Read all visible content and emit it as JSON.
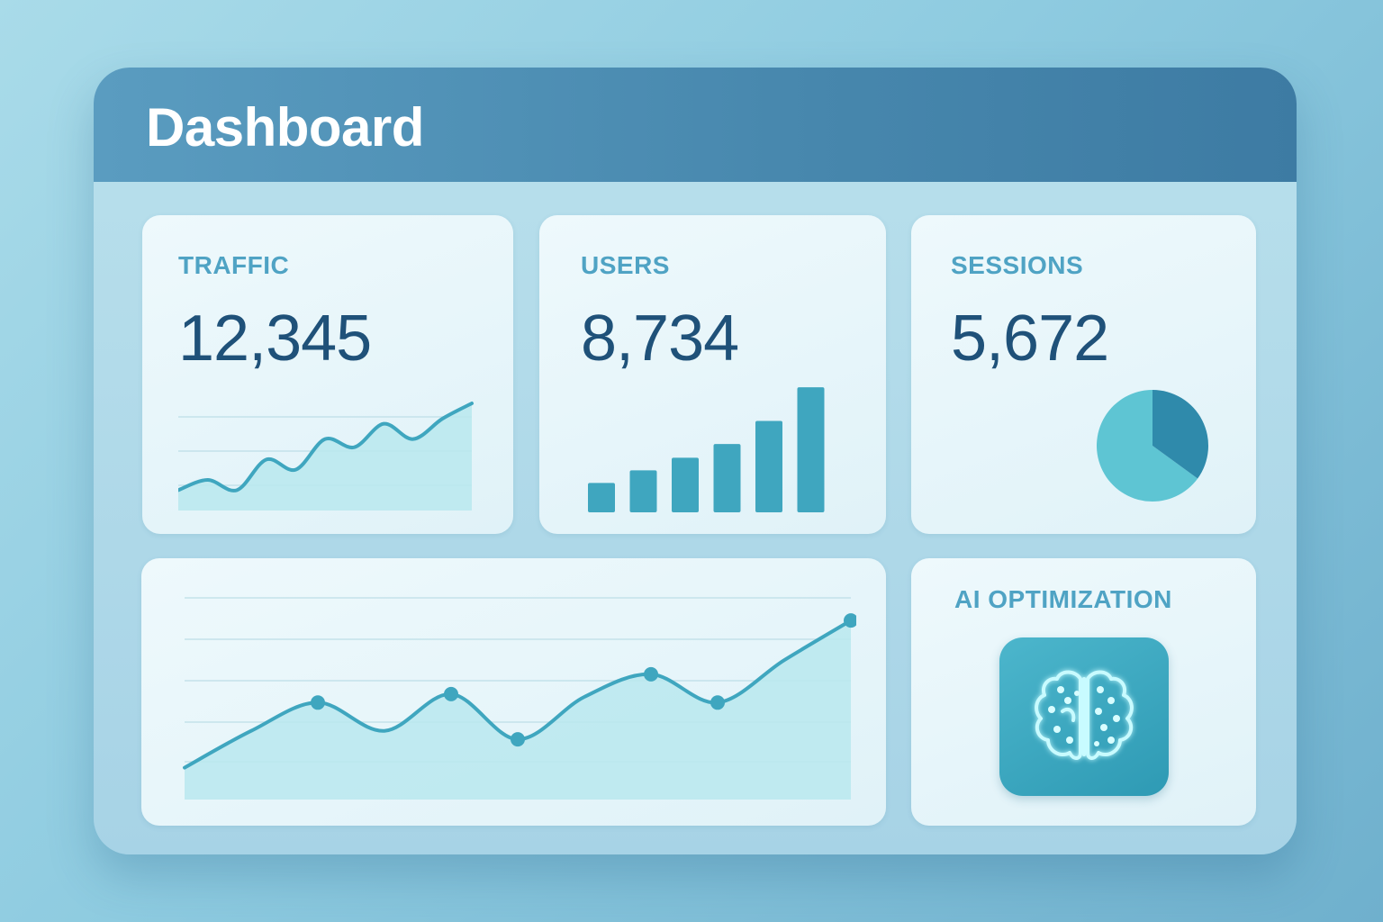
{
  "header": {
    "title": "Dashboard"
  },
  "cards": {
    "traffic": {
      "label": "TRAFFIC",
      "value": "12,345"
    },
    "users": {
      "label": "USERS",
      "value": "8,734"
    },
    "sessions": {
      "label": "SESSIONS",
      "value": "5,672"
    },
    "ai": {
      "label": "AI OPTIMIZATION",
      "icon": "brain-icon"
    }
  },
  "colors": {
    "header": "#4787ad",
    "accent": "#3fa6bf",
    "value_text": "#1f5179",
    "label_text": "#4fa3c4",
    "area_fill": "#b9e8ee"
  },
  "chart_data": [
    {
      "type": "area",
      "name": "traffic-sparkline",
      "x": [
        0,
        1,
        2,
        3,
        4,
        5,
        6,
        7,
        8,
        9,
        10
      ],
      "values": [
        2,
        3,
        2,
        5,
        4,
        7,
        6.2,
        8.5,
        7,
        9,
        10.5
      ],
      "ylim": [
        0,
        12
      ],
      "grid": true
    },
    {
      "type": "bar",
      "name": "users-bars",
      "categories": [
        "1",
        "2",
        "3",
        "4",
        "5",
        "6"
      ],
      "values": [
        2.8,
        4.0,
        5.2,
        6.5,
        8.7,
        11.9
      ],
      "ylim": [
        0,
        12
      ]
    },
    {
      "type": "pie",
      "name": "sessions-pie",
      "values": [
        65,
        35
      ]
    },
    {
      "type": "line",
      "name": "main-trend",
      "x": [
        0,
        1,
        2,
        3,
        4,
        5,
        6,
        7,
        8,
        9,
        10
      ],
      "values": [
        1.0,
        2.3,
        3.3,
        2.3,
        3.6,
        2.0,
        3.5,
        4.3,
        3.3,
        4.8,
        6.2
      ],
      "markers": [
        2,
        4,
        5,
        7,
        8,
        10
      ],
      "ylim": [
        0,
        7
      ],
      "grid": true
    }
  ]
}
